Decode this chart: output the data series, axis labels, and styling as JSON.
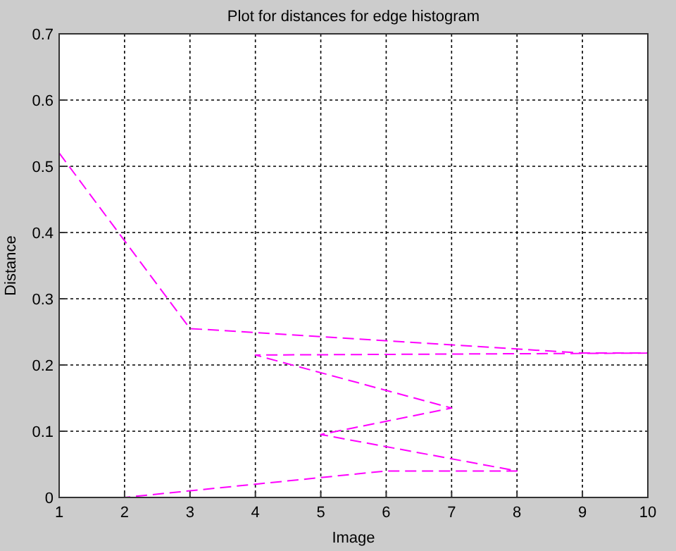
{
  "chart_data": {
    "type": "line",
    "title": "Plot for distances for edge histogram",
    "xlabel": "Image",
    "ylabel": "Distance",
    "series": [
      {
        "color": "#ff00ff",
        "x": [
          1,
          3,
          9,
          10,
          4,
          7,
          5,
          8,
          6,
          2
        ],
        "values": [
          0.52,
          0.255,
          0.218,
          0.218,
          0.215,
          0.135,
          0.095,
          0.04,
          0.04,
          0
        ]
      }
    ],
    "xlim": [
      1,
      10
    ],
    "xticks": [
      1,
      2,
      3,
      4,
      5,
      6,
      7,
      8,
      9,
      10
    ],
    "ylim": [
      0,
      0.7
    ],
    "yticks": [
      0,
      0.1,
      0.2,
      0.3,
      0.4,
      0.5,
      0.6,
      0.7
    ],
    "grid": true,
    "line_style": "dashed",
    "marker": "none"
  }
}
